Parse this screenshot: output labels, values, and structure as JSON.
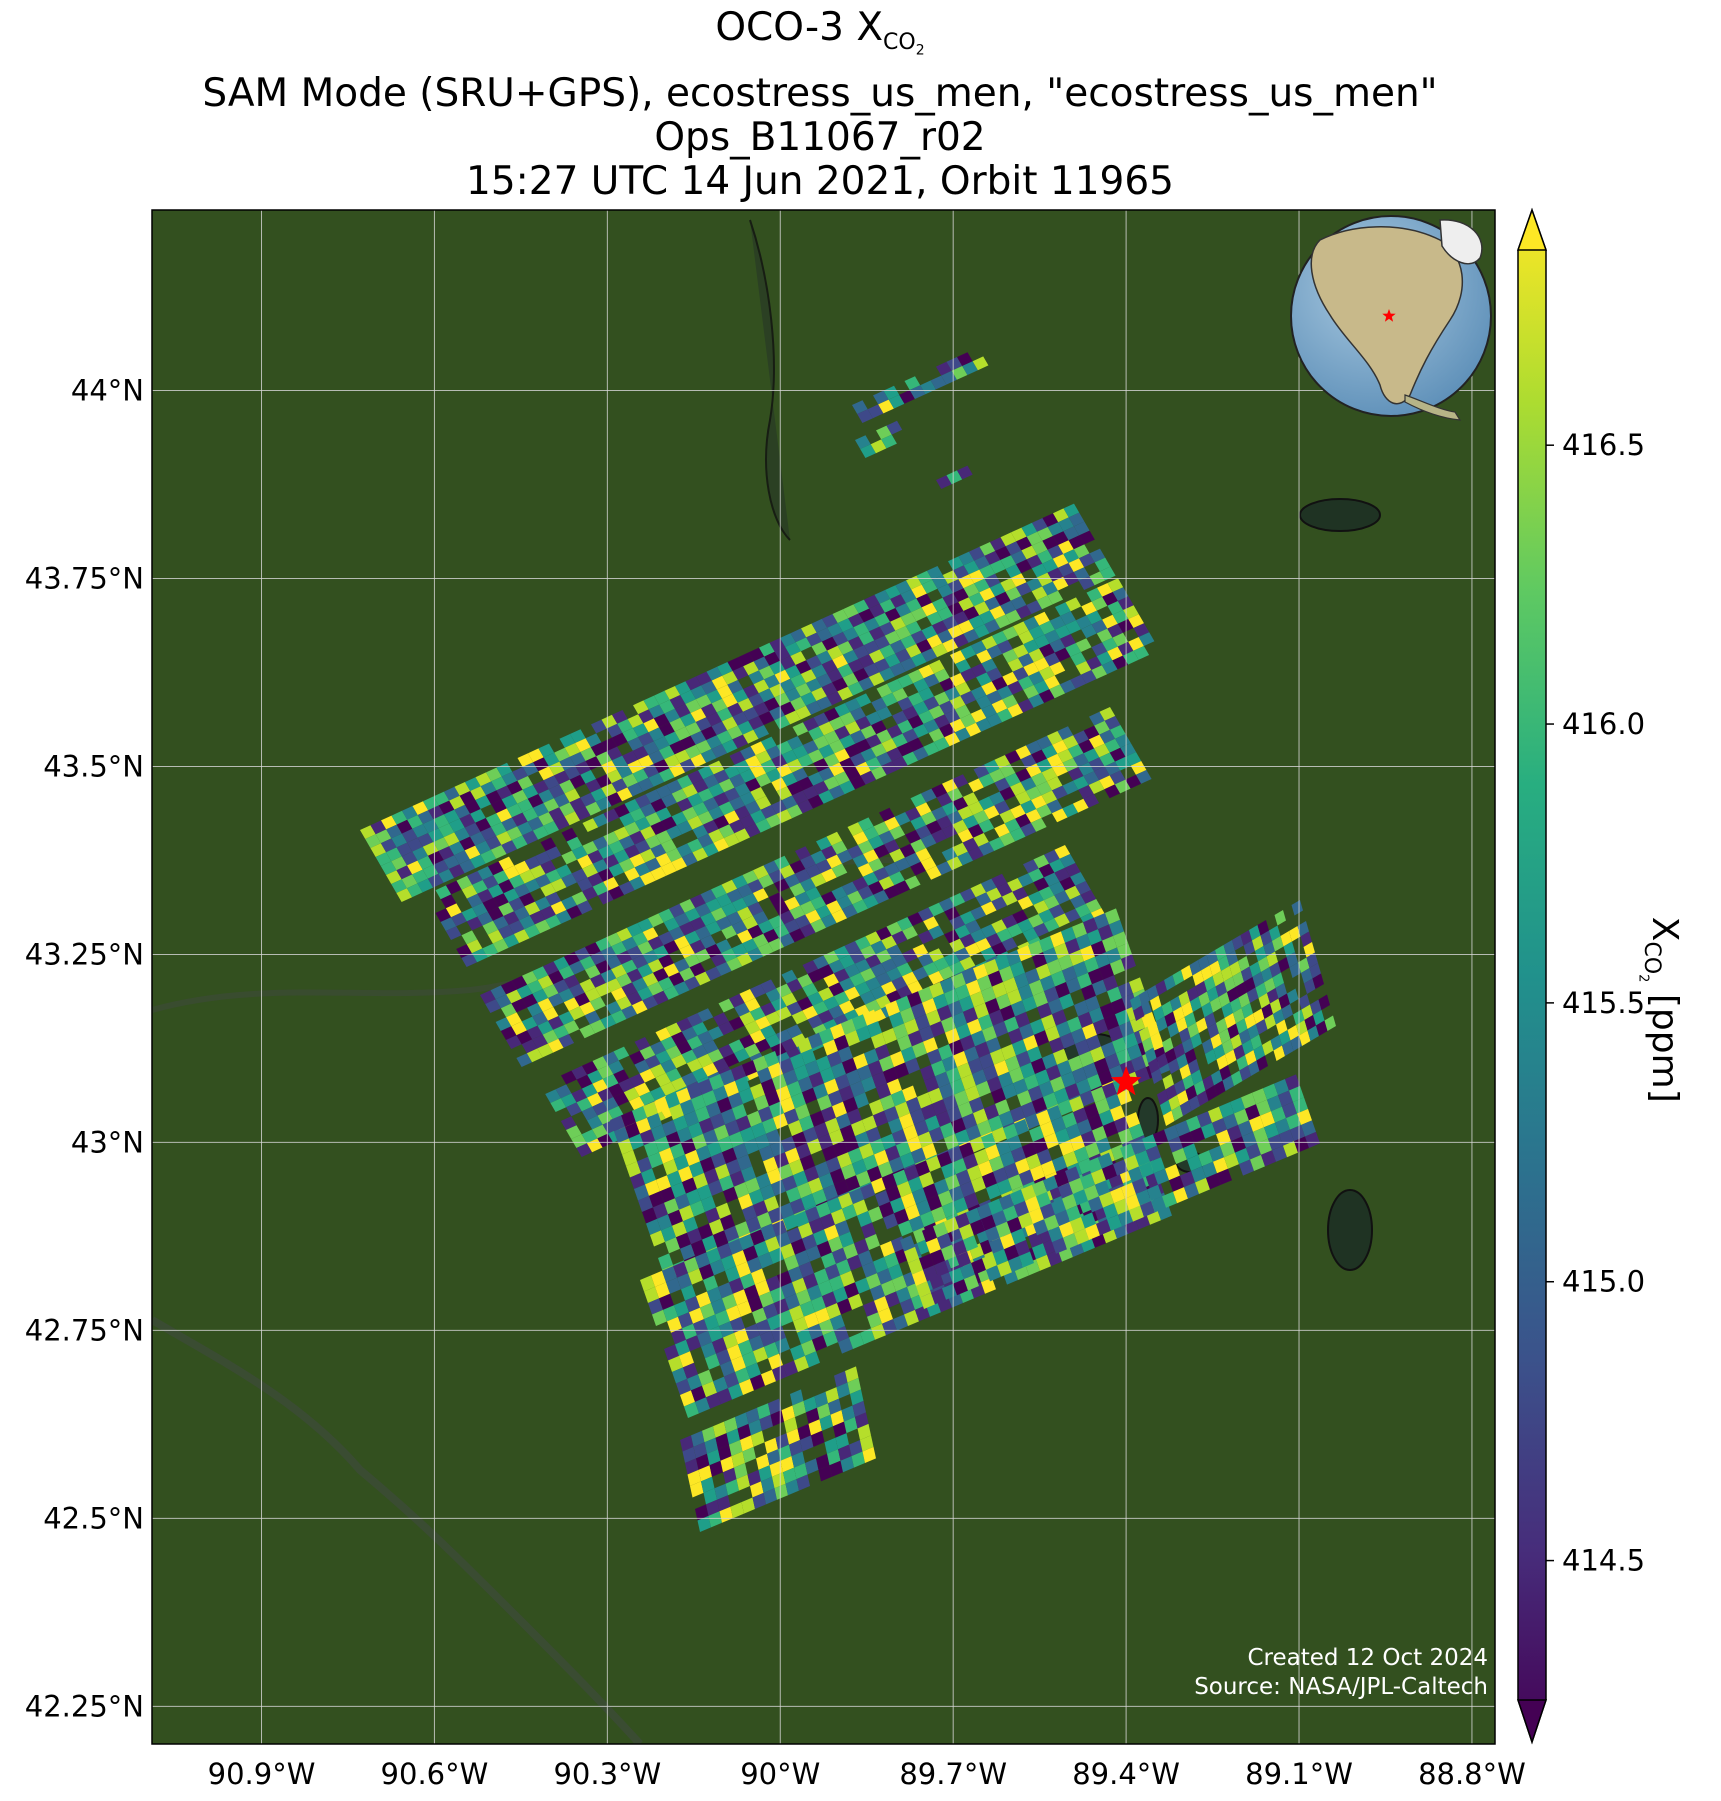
{
  "title": {
    "line1_prefix": "OCO-3 X",
    "line1_sub": "CO",
    "line1_sub2": "2",
    "line2": "SAM Mode (SRU+GPS), ecostress_us_men, \"ecostress_us_men\"",
    "line3": "Ops_B11067_r02",
    "line4": "15:27 UTC 14 Jun 2021, Orbit 11965"
  },
  "map": {
    "lon_range": [
      -91.09,
      -88.76
    ],
    "lat_range": [
      42.2,
      44.24
    ],
    "lon_ticks": [
      {
        "value": -90.9,
        "label": "90.9°W"
      },
      {
        "value": -90.6,
        "label": "90.6°W"
      },
      {
        "value": -90.3,
        "label": "90.3°W"
      },
      {
        "value": -90.0,
        "label": "90°W"
      },
      {
        "value": -89.7,
        "label": "89.7°W"
      },
      {
        "value": -89.4,
        "label": "89.4°W"
      },
      {
        "value": -89.1,
        "label": "89.1°W"
      },
      {
        "value": -88.8,
        "label": "88.8°W"
      }
    ],
    "lat_ticks": [
      {
        "value": 44.0,
        "label": "44°N"
      },
      {
        "value": 43.75,
        "label": "43.75°N"
      },
      {
        "value": 43.5,
        "label": "43.5°N"
      },
      {
        "value": 43.25,
        "label": "43.25°N"
      },
      {
        "value": 43.0,
        "label": "43°N"
      },
      {
        "value": 42.75,
        "label": "42.75°N"
      },
      {
        "value": 42.5,
        "label": "42.5°N"
      },
      {
        "value": 42.25,
        "label": "42.25°N"
      }
    ],
    "target": {
      "lon": -89.4,
      "lat": 43.08,
      "color": "#ff0000"
    },
    "colors": {
      "land": "#2f4a1f",
      "grid": "#d8d8d8",
      "star": "#ff0000"
    }
  },
  "colorbar": {
    "colormap": "viridis",
    "range": [
      414.25,
      416.85
    ],
    "ticks": [
      {
        "value": 414.5,
        "label": "414.5"
      },
      {
        "value": 415.0,
        "label": "415.0"
      },
      {
        "value": 415.5,
        "label": "415.5"
      },
      {
        "value": 416.0,
        "label": "416.0"
      },
      {
        "value": 416.5,
        "label": "416.5"
      }
    ],
    "label_prefix": "X",
    "label_sub": "CO",
    "label_sub2": "2",
    "label_suffix": " [ppm]"
  },
  "credits": {
    "created": "Created 12 Oct 2024",
    "source": "Source: NASA/JPL-Caltech"
  }
}
